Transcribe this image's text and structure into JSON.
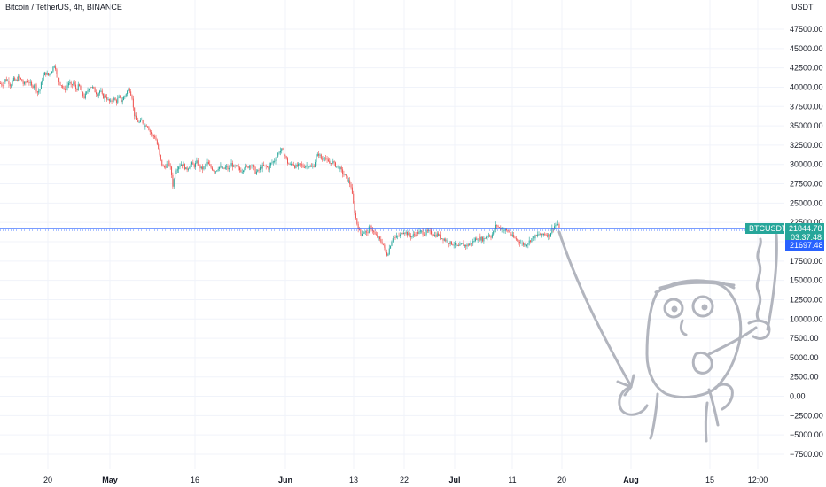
{
  "header": {
    "title": "Bitcoin / TetherUS, 4h, BINANCE",
    "unit": "USDT"
  },
  "price_tag": {
    "symbol": "BTCUSDT",
    "price": "21844.78",
    "countdown": "03:37:48",
    "line_price": "21697.48"
  },
  "colors": {
    "up": "#26a69a",
    "down": "#ef5350",
    "price_line": "#2962ff",
    "grid": "#f0f3fa",
    "drawing": "#b2b5be"
  },
  "chart_data": {
    "type": "candlestick",
    "title": "Bitcoin / TetherUS, 4h, BINANCE",
    "ylabel": "USDT",
    "ylim": [
      -8750,
      50000
    ],
    "yticks": [
      "47500.00",
      "45000.00",
      "42500.00",
      "40000.00",
      "37500.00",
      "35000.00",
      "32500.00",
      "30000.00",
      "27500.00",
      "25000.00",
      "22500.00",
      "20000.00",
      "17500.00",
      "15000.00",
      "12500.00",
      "10000.00",
      "7500.00",
      "5000.00",
      "2500.00",
      "0.00",
      "−2500.00",
      "−5000.00",
      "−7500.00"
    ],
    "xticks": [
      {
        "label": "20",
        "bold": false
      },
      {
        "label": "May",
        "bold": true
      },
      {
        "label": "16",
        "bold": false
      },
      {
        "label": "Jun",
        "bold": true
      },
      {
        "label": "13",
        "bold": false
      },
      {
        "label": "22",
        "bold": false
      },
      {
        "label": "Jul",
        "bold": true
      },
      {
        "label": "11",
        "bold": false
      },
      {
        "label": "20",
        "bold": false
      },
      {
        "label": "Aug",
        "bold": true
      },
      {
        "label": "15",
        "bold": false
      },
      {
        "label": "12:00",
        "bold": false
      }
    ],
    "price_path": [
      [
        0,
        40500
      ],
      [
        3,
        40300
      ],
      [
        6,
        41000
      ],
      [
        9,
        40800
      ],
      [
        12,
        40200
      ],
      [
        15,
        41000
      ],
      [
        18,
        40800
      ],
      [
        21,
        41300
      ],
      [
        24,
        40900
      ],
      [
        27,
        40300
      ],
      [
        30,
        40800
      ],
      [
        33,
        40700
      ],
      [
        36,
        40000
      ],
      [
        39,
        40500
      ],
      [
        42,
        39300
      ],
      [
        45,
        39700
      ],
      [
        48,
        41200
      ],
      [
        51,
        41900
      ],
      [
        54,
        41500
      ],
      [
        57,
        41800
      ],
      [
        60,
        42600
      ],
      [
        62,
        43000
      ],
      [
        64,
        41500
      ],
      [
        67,
        40600
      ],
      [
        70,
        40200
      ],
      [
        72,
        39600
      ],
      [
        75,
        40000
      ],
      [
        78,
        40700
      ],
      [
        80,
        40100
      ],
      [
        83,
        40600
      ],
      [
        86,
        39600
      ],
      [
        89,
        40300
      ],
      [
        92,
        39200
      ],
      [
        95,
        38700
      ],
      [
        98,
        39300
      ],
      [
        101,
        40200
      ],
      [
        104,
        40000
      ],
      [
        107,
        39500
      ],
      [
        110,
        39100
      ],
      [
        113,
        39600
      ],
      [
        116,
        38700
      ],
      [
        119,
        38900
      ],
      [
        122,
        38300
      ],
      [
        125,
        38000
      ],
      [
        128,
        38600
      ],
      [
        131,
        38100
      ],
      [
        134,
        38700
      ],
      [
        137,
        38200
      ],
      [
        140,
        38700
      ],
      [
        143,
        39400
      ],
      [
        146,
        39800
      ],
      [
        149,
        38700
      ],
      [
        151,
        36600
      ],
      [
        154,
        35800
      ],
      [
        157,
        35400
      ],
      [
        160,
        35700
      ],
      [
        163,
        35000
      ],
      [
        166,
        35200
      ],
      [
        169,
        34300
      ],
      [
        172,
        33700
      ],
      [
        175,
        33600
      ],
      [
        178,
        32300
      ],
      [
        181,
        30600
      ],
      [
        184,
        29600
      ],
      [
        187,
        29800
      ],
      [
        190,
        30300
      ],
      [
        193,
        29200
      ],
      [
        195,
        27200
      ],
      [
        198,
        29300
      ],
      [
        201,
        29700
      ],
      [
        204,
        30100
      ],
      [
        207,
        29900
      ],
      [
        210,
        29300
      ],
      [
        213,
        29700
      ],
      [
        216,
        30100
      ],
      [
        219,
        29800
      ],
      [
        222,
        30300
      ],
      [
        225,
        29700
      ],
      [
        228,
        29400
      ],
      [
        231,
        29700
      ],
      [
        234,
        30200
      ],
      [
        237,
        29700
      ],
      [
        240,
        29400
      ],
      [
        243,
        29100
      ],
      [
        246,
        29600
      ],
      [
        249,
        29700
      ],
      [
        252,
        29300
      ],
      [
        255,
        29700
      ],
      [
        258,
        29300
      ],
      [
        261,
        30100
      ],
      [
        264,
        29600
      ],
      [
        267,
        29700
      ],
      [
        270,
        29300
      ],
      [
        273,
        29200
      ],
      [
        276,
        29700
      ],
      [
        279,
        29600
      ],
      [
        282,
        30000
      ],
      [
        285,
        29900
      ],
      [
        288,
        29000
      ],
      [
        291,
        29100
      ],
      [
        294,
        29600
      ],
      [
        297,
        29800
      ],
      [
        300,
        29700
      ],
      [
        303,
        29500
      ],
      [
        306,
        30200
      ],
      [
        309,
        30400
      ],
      [
        312,
        31000
      ],
      [
        315,
        31700
      ],
      [
        318,
        31900
      ],
      [
        321,
        31400
      ],
      [
        324,
        30300
      ],
      [
        327,
        29900
      ],
      [
        330,
        30200
      ],
      [
        333,
        29700
      ],
      [
        336,
        29800
      ],
      [
        339,
        30000
      ],
      [
        342,
        29700
      ],
      [
        345,
        29900
      ],
      [
        348,
        29900
      ],
      [
        351,
        29600
      ],
      [
        354,
        29800
      ],
      [
        357,
        31000
      ],
      [
        360,
        31400
      ],
      [
        363,
        30500
      ],
      [
        366,
        31200
      ],
      [
        369,
        30400
      ],
      [
        372,
        30100
      ],
      [
        375,
        30400
      ],
      [
        378,
        29900
      ],
      [
        381,
        29800
      ],
      [
        384,
        29400
      ],
      [
        387,
        28800
      ],
      [
        390,
        28400
      ],
      [
        393,
        27900
      ],
      [
        396,
        27200
      ],
      [
        398,
        25500
      ],
      [
        400,
        23900
      ],
      [
        402,
        22700
      ],
      [
        404,
        21900
      ],
      [
        406,
        21200
      ],
      [
        408,
        20900
      ],
      [
        411,
        21400
      ],
      [
        414,
        21000
      ],
      [
        417,
        22000
      ],
      [
        420,
        21600
      ],
      [
        423,
        20900
      ],
      [
        426,
        20600
      ],
      [
        429,
        20100
      ],
      [
        432,
        19800
      ],
      [
        435,
        18600
      ],
      [
        437,
        18300
      ],
      [
        440,
        19400
      ],
      [
        443,
        20600
      ],
      [
        446,
        20500
      ],
      [
        449,
        20700
      ],
      [
        452,
        20900
      ],
      [
        455,
        21400
      ],
      [
        458,
        21200
      ],
      [
        461,
        20900
      ],
      [
        464,
        20700
      ],
      [
        467,
        20900
      ],
      [
        470,
        21100
      ],
      [
        473,
        21200
      ],
      [
        476,
        21300
      ],
      [
        479,
        21000
      ],
      [
        482,
        21300
      ],
      [
        485,
        21200
      ],
      [
        488,
        21100
      ],
      [
        491,
        20800
      ],
      [
        494,
        21000
      ],
      [
        497,
        20600
      ],
      [
        500,
        20400
      ],
      [
        503,
        20200
      ],
      [
        506,
        19900
      ],
      [
        509,
        19800
      ],
      [
        512,
        19700
      ],
      [
        515,
        19400
      ],
      [
        518,
        19300
      ],
      [
        521,
        19700
      ],
      [
        524,
        19500
      ],
      [
        527,
        19500
      ],
      [
        530,
        19700
      ],
      [
        533,
        19900
      ],
      [
        536,
        20300
      ],
      [
        539,
        20500
      ],
      [
        542,
        20400
      ],
      [
        545,
        20300
      ],
      [
        548,
        20600
      ],
      [
        551,
        20900
      ],
      [
        554,
        20700
      ],
      [
        557,
        21300
      ],
      [
        560,
        22200
      ],
      [
        563,
        21800
      ],
      [
        566,
        21700
      ],
      [
        569,
        21500
      ],
      [
        572,
        21400
      ],
      [
        575,
        21200
      ],
      [
        578,
        20700
      ],
      [
        581,
        20400
      ],
      [
        584,
        20200
      ],
      [
        587,
        19900
      ],
      [
        590,
        19700
      ],
      [
        593,
        19600
      ],
      [
        596,
        19900
      ],
      [
        599,
        20300
      ],
      [
        602,
        20600
      ],
      [
        605,
        20700
      ],
      [
        608,
        21000
      ],
      [
        611,
        20800
      ],
      [
        614,
        21100
      ],
      [
        617,
        20900
      ],
      [
        620,
        20800
      ],
      [
        623,
        21700
      ],
      [
        626,
        22100
      ],
      [
        628,
        22300
      ],
      [
        630,
        22000
      ],
      [
        632,
        21800
      ]
    ]
  },
  "drawing": {
    "name": "hand-drawn character sketch"
  }
}
